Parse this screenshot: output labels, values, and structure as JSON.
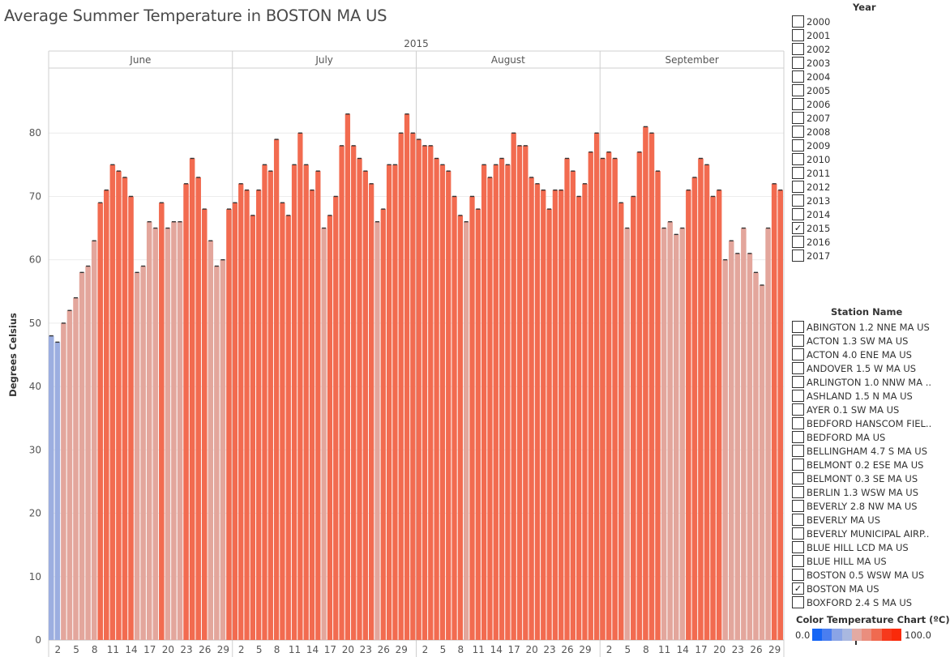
{
  "title": "Average Summer Temperature in BOSTON MA US",
  "year_filter": {
    "title": "Year",
    "items": [
      {
        "label": "2000",
        "checked": false
      },
      {
        "label": "2001",
        "checked": false
      },
      {
        "label": "2002",
        "checked": false
      },
      {
        "label": "2003",
        "checked": false
      },
      {
        "label": "2004",
        "checked": false
      },
      {
        "label": "2005",
        "checked": false
      },
      {
        "label": "2006",
        "checked": false
      },
      {
        "label": "2007",
        "checked": false
      },
      {
        "label": "2008",
        "checked": false
      },
      {
        "label": "2009",
        "checked": false
      },
      {
        "label": "2010",
        "checked": false
      },
      {
        "label": "2011",
        "checked": false
      },
      {
        "label": "2012",
        "checked": false
      },
      {
        "label": "2013",
        "checked": false
      },
      {
        "label": "2014",
        "checked": false
      },
      {
        "label": "2015",
        "checked": true
      },
      {
        "label": "2016",
        "checked": false
      },
      {
        "label": "2017",
        "checked": false
      }
    ]
  },
  "station_filter": {
    "title": "Station Name",
    "items": [
      {
        "label": "ABINGTON 1.2 NNE MA US",
        "checked": false
      },
      {
        "label": "ACTON 1.3 SW MA US",
        "checked": false
      },
      {
        "label": "ACTON 4.0 ENE MA US",
        "checked": false
      },
      {
        "label": "ANDOVER 1.5 W MA US",
        "checked": false
      },
      {
        "label": "ARLINGTON 1.0 NNW MA ..",
        "checked": false
      },
      {
        "label": "ASHLAND 1.5 N MA US",
        "checked": false
      },
      {
        "label": "AYER 0.1 SW MA US",
        "checked": false
      },
      {
        "label": "BEDFORD HANSCOM FIEL..",
        "checked": false
      },
      {
        "label": "BEDFORD MA US",
        "checked": false
      },
      {
        "label": "BELLINGHAM 4.7 S MA US",
        "checked": false
      },
      {
        "label": "BELMONT 0.2 ESE MA US",
        "checked": false
      },
      {
        "label": "BELMONT 0.3 SE MA US",
        "checked": false
      },
      {
        "label": "BERLIN 1.3 WSW MA US",
        "checked": false
      },
      {
        "label": "BEVERLY 2.8 NW MA US",
        "checked": false
      },
      {
        "label": "BEVERLY MA US",
        "checked": false
      },
      {
        "label": "BEVERLY MUNICIPAL AIRP..",
        "checked": false
      },
      {
        "label": "BLUE HILL LCD MA US",
        "checked": false
      },
      {
        "label": "BLUE HILL MA US",
        "checked": false
      },
      {
        "label": "BOSTON 0.5 WSW MA US",
        "checked": false
      },
      {
        "label": "BOSTON MA US",
        "checked": true
      },
      {
        "label": "BOXFORD 2.4 S MA US",
        "checked": false
      }
    ],
    "check_glyph": "✓"
  },
  "color_legend": {
    "title": "Color Temperature Chart (ºC)",
    "min_label": "0.0",
    "max_label": "100.0",
    "ramp_colors": [
      "#1565f5",
      "#4a7ef0",
      "#8aa4e6",
      "#a9b8e0",
      "#e2aaa3",
      "#ea8e7e",
      "#f06a50",
      "#f7391c",
      "#fa2a0a"
    ]
  },
  "chart_data": {
    "type": "bar",
    "year": "2015",
    "ylabel": "Degrees Celsius",
    "ylim": [
      0,
      90
    ],
    "yticks": [
      0,
      10,
      20,
      30,
      40,
      50,
      60,
      70,
      80
    ],
    "grid": "horizontal",
    "color_scale": {
      "min": 0,
      "max": 100
    },
    "colors": {
      "cool": "#9caee0",
      "mild": "#e3a69c",
      "warm": "#f26b50"
    },
    "months": [
      {
        "name": "June",
        "days": 30,
        "tick_days": [
          2,
          5,
          8,
          11,
          14,
          17,
          20,
          23,
          26,
          29
        ],
        "values": [
          48,
          47,
          50,
          52,
          54,
          58,
          59,
          63,
          69,
          71,
          75,
          74,
          73,
          70,
          58,
          59,
          66,
          65,
          69,
          65,
          66,
          66,
          72,
          76,
          73,
          68,
          63,
          59,
          60,
          68
        ]
      },
      {
        "name": "July",
        "days": 31,
        "tick_days": [
          2,
          5,
          8,
          11,
          14,
          17,
          20,
          23,
          26,
          29
        ],
        "values": [
          69,
          72,
          71,
          67,
          71,
          75,
          74,
          79,
          69,
          67,
          75,
          80,
          75,
          71,
          74,
          65,
          67,
          70,
          78,
          83,
          78,
          76,
          74,
          72,
          66,
          68,
          75,
          75,
          80,
          83,
          80
        ]
      },
      {
        "name": "August",
        "days": 31,
        "tick_days": [
          2,
          5,
          8,
          11,
          14,
          17,
          20,
          23,
          26,
          29
        ],
        "values": [
          79,
          78,
          78,
          76,
          75,
          74,
          70,
          67,
          66,
          70,
          68,
          75,
          73,
          75,
          76,
          75,
          80,
          78,
          78,
          73,
          72,
          71,
          68,
          71,
          71,
          76,
          74,
          70,
          72,
          77,
          80
        ]
      },
      {
        "name": "September",
        "days": 30,
        "tick_days": [
          2,
          5,
          8,
          11,
          14,
          17,
          20,
          23,
          26,
          29
        ],
        "values": [
          76,
          77,
          76,
          69,
          65,
          70,
          77,
          81,
          80,
          74,
          65,
          66,
          64,
          65,
          71,
          73,
          76,
          75,
          70,
          71,
          60,
          63,
          61,
          65,
          61,
          58,
          56,
          65,
          72,
          71
        ]
      }
    ]
  }
}
